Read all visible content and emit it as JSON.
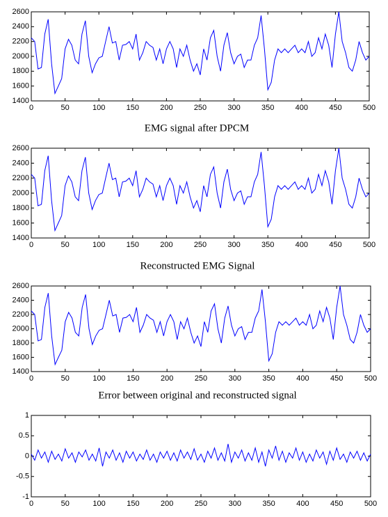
{
  "chart_data": [
    {
      "type": "line",
      "color": "#0000ff",
      "x": [
        0,
        5,
        10,
        15,
        20,
        25,
        30,
        35,
        40,
        45,
        50,
        55,
        60,
        65,
        70,
        75,
        80,
        85,
        90,
        95,
        100,
        105,
        110,
        115,
        120,
        125,
        130,
        135,
        140,
        145,
        150,
        155,
        160,
        165,
        170,
        175,
        180,
        185,
        190,
        195,
        200,
        205,
        210,
        215,
        220,
        225,
        230,
        235,
        240,
        245,
        250,
        255,
        260,
        265,
        270,
        275,
        280,
        285,
        290,
        295,
        300,
        305,
        310,
        315,
        320,
        325,
        330,
        335,
        340,
        345,
        350,
        355,
        360,
        365,
        370,
        375,
        380,
        385,
        390,
        395,
        400,
        405,
        410,
        415,
        420,
        425,
        430,
        435,
        440,
        445,
        450,
        455,
        460,
        465,
        470,
        475,
        480,
        485,
        490,
        495,
        500
      ],
      "values": [
        2250,
        2200,
        1830,
        1850,
        2300,
        2500,
        1900,
        1500,
        1600,
        1700,
        2100,
        2230,
        2150,
        1950,
        1900,
        2300,
        2480,
        2000,
        1780,
        1900,
        1980,
        2000,
        2200,
        2400,
        2180,
        2200,
        1950,
        2150,
        2160,
        2200,
        2100,
        2300,
        1950,
        2050,
        2200,
        2150,
        2120,
        1950,
        2100,
        1900,
        2100,
        2200,
        2100,
        1850,
        2100,
        2000,
        2150,
        1950,
        1800,
        1900,
        1750,
        2100,
        1950,
        2250,
        2350,
        2000,
        1800,
        2150,
        2320,
        2050,
        1900,
        2000,
        2030,
        1850,
        1950,
        1950,
        2150,
        2250,
        2550,
        2100,
        1550,
        1650,
        1950,
        2100,
        2050,
        2100,
        2050,
        2100,
        2150,
        2050,
        2100,
        2050,
        2200,
        2000,
        2050,
        2250,
        2100,
        2300,
        2150,
        1850,
        2300,
        2600,
        2200,
        2050,
        1850,
        1800,
        1950,
        2200,
        2050,
        1950,
        2000
      ],
      "xlim": [
        0,
        500
      ],
      "ylim": [
        1400,
        2600
      ],
      "xticks": [
        0,
        50,
        100,
        150,
        200,
        250,
        300,
        350,
        400,
        450,
        500
      ],
      "yticks": [
        1400,
        1600,
        1800,
        2000,
        2200,
        2400,
        2600
      ]
    },
    {
      "type": "line",
      "title": "EMG signal after DPCM",
      "color": "#0000ff",
      "x": [
        0,
        5,
        10,
        15,
        20,
        25,
        30,
        35,
        40,
        45,
        50,
        55,
        60,
        65,
        70,
        75,
        80,
        85,
        90,
        95,
        100,
        105,
        110,
        115,
        120,
        125,
        130,
        135,
        140,
        145,
        150,
        155,
        160,
        165,
        170,
        175,
        180,
        185,
        190,
        195,
        200,
        205,
        210,
        215,
        220,
        225,
        230,
        235,
        240,
        245,
        250,
        255,
        260,
        265,
        270,
        275,
        280,
        285,
        290,
        295,
        300,
        305,
        310,
        315,
        320,
        325,
        330,
        335,
        340,
        345,
        350,
        355,
        360,
        365,
        370,
        375,
        380,
        385,
        390,
        395,
        400,
        405,
        410,
        415,
        420,
        425,
        430,
        435,
        440,
        445,
        450,
        455,
        460,
        465,
        470,
        475,
        480,
        485,
        490,
        495,
        500
      ],
      "values": [
        2250,
        2200,
        1830,
        1850,
        2300,
        2500,
        1900,
        1500,
        1600,
        1700,
        2100,
        2230,
        2150,
        1950,
        1900,
        2300,
        2480,
        2000,
        1780,
        1900,
        1980,
        2000,
        2200,
        2400,
        2180,
        2200,
        1950,
        2150,
        2160,
        2200,
        2100,
        2300,
        1950,
        2050,
        2200,
        2150,
        2120,
        1950,
        2100,
        1900,
        2100,
        2200,
        2100,
        1850,
        2100,
        2000,
        2150,
        1950,
        1800,
        1900,
        1750,
        2100,
        1950,
        2250,
        2350,
        2000,
        1800,
        2150,
        2320,
        2050,
        1900,
        2000,
        2030,
        1850,
        1950,
        1950,
        2150,
        2250,
        2550,
        2100,
        1550,
        1650,
        1950,
        2100,
        2050,
        2100,
        2050,
        2100,
        2150,
        2050,
        2100,
        2050,
        2200,
        2000,
        2050,
        2250,
        2100,
        2300,
        2150,
        1850,
        2300,
        2600,
        2200,
        2050,
        1850,
        1800,
        1950,
        2200,
        2050,
        1950,
        2000
      ],
      "xlim": [
        0,
        500
      ],
      "ylim": [
        1400,
        2600
      ],
      "xticks": [
        0,
        50,
        100,
        150,
        200,
        250,
        300,
        350,
        400,
        450,
        500
      ],
      "yticks": [
        1400,
        1600,
        1800,
        2000,
        2200,
        2400,
        2600
      ]
    },
    {
      "type": "line",
      "title": "Reconstructed EMG Signal",
      "color": "#0000ff",
      "x": [
        0,
        5,
        10,
        15,
        20,
        25,
        30,
        35,
        40,
        45,
        50,
        55,
        60,
        65,
        70,
        75,
        80,
        85,
        90,
        95,
        100,
        105,
        110,
        115,
        120,
        125,
        130,
        135,
        140,
        145,
        150,
        155,
        160,
        165,
        170,
        175,
        180,
        185,
        190,
        195,
        200,
        205,
        210,
        215,
        220,
        225,
        230,
        235,
        240,
        245,
        250,
        255,
        260,
        265,
        270,
        275,
        280,
        285,
        290,
        295,
        300,
        305,
        310,
        315,
        320,
        325,
        330,
        335,
        340,
        345,
        350,
        355,
        360,
        365,
        370,
        375,
        380,
        385,
        390,
        395,
        400,
        405,
        410,
        415,
        420,
        425,
        430,
        435,
        440,
        445,
        450,
        455,
        460,
        465,
        470,
        475,
        480,
        485,
        490,
        495,
        500
      ],
      "values": [
        2250,
        2200,
        1830,
        1850,
        2300,
        2500,
        1900,
        1500,
        1600,
        1700,
        2100,
        2230,
        2150,
        1950,
        1900,
        2300,
        2480,
        2000,
        1780,
        1900,
        1980,
        2000,
        2200,
        2400,
        2180,
        2200,
        1950,
        2150,
        2160,
        2200,
        2100,
        2300,
        1950,
        2050,
        2200,
        2150,
        2120,
        1950,
        2100,
        1900,
        2100,
        2200,
        2100,
        1850,
        2100,
        2000,
        2150,
        1950,
        1800,
        1900,
        1750,
        2100,
        1950,
        2250,
        2350,
        2000,
        1800,
        2150,
        2320,
        2050,
        1900,
        2000,
        2030,
        1850,
        1950,
        1950,
        2150,
        2250,
        2550,
        2100,
        1550,
        1650,
        1950,
        2100,
        2050,
        2100,
        2050,
        2100,
        2150,
        2050,
        2100,
        2050,
        2200,
        2000,
        2050,
        2250,
        2100,
        2300,
        2150,
        1850,
        2300,
        2600,
        2200,
        2050,
        1850,
        1800,
        1950,
        2200,
        2050,
        1950,
        2000
      ],
      "xlim": [
        0,
        500
      ],
      "ylim": [
        1400,
        2600
      ],
      "xticks": [
        0,
        50,
        100,
        150,
        200,
        250,
        300,
        350,
        400,
        450,
        500
      ],
      "yticks": [
        1400,
        1600,
        1800,
        2000,
        2200,
        2400,
        2600
      ]
    },
    {
      "type": "line",
      "title": "Error between original and reconstructed signal",
      "color": "#0000ff",
      "x": [
        0,
        5,
        10,
        15,
        20,
        25,
        30,
        35,
        40,
        45,
        50,
        55,
        60,
        65,
        70,
        75,
        80,
        85,
        90,
        95,
        100,
        105,
        110,
        115,
        120,
        125,
        130,
        135,
        140,
        145,
        150,
        155,
        160,
        165,
        170,
        175,
        180,
        185,
        190,
        195,
        200,
        205,
        210,
        215,
        220,
        225,
        230,
        235,
        240,
        245,
        250,
        255,
        260,
        265,
        270,
        275,
        280,
        285,
        290,
        295,
        300,
        305,
        310,
        315,
        320,
        325,
        330,
        335,
        340,
        345,
        350,
        355,
        360,
        365,
        370,
        375,
        380,
        385,
        390,
        395,
        400,
        405,
        410,
        415,
        420,
        425,
        430,
        435,
        440,
        445,
        450,
        455,
        460,
        465,
        470,
        475,
        480,
        485,
        490,
        495,
        500
      ],
      "values": [
        0.05,
        -0.1,
        0.15,
        -0.05,
        0.1,
        -0.15,
        0.12,
        -0.08,
        0.05,
        -0.12,
        0.18,
        -0.05,
        0.08,
        -0.15,
        0.1,
        -0.02,
        0.15,
        -0.1,
        0.05,
        -0.12,
        0.2,
        -0.25,
        0.1,
        -0.05,
        0.15,
        -0.1,
        0.08,
        -0.15,
        0.12,
        -0.05,
        0.1,
        -0.12,
        0.05,
        -0.08,
        0.15,
        -0.1,
        0.05,
        -0.15,
        0.1,
        -0.05,
        0.12,
        -0.1,
        0.08,
        -0.12,
        0.15,
        -0.05,
        0.1,
        -0.08,
        0.18,
        -0.1,
        0.05,
        -0.15,
        0.12,
        -0.05,
        0.2,
        -0.1,
        0.08,
        -0.12,
        0.3,
        -0.15,
        0.1,
        -0.05,
        0.15,
        -0.12,
        0.08,
        -0.1,
        0.2,
        -0.15,
        0.1,
        -0.25,
        0.15,
        -0.05,
        0.25,
        -0.1,
        0.12,
        -0.15,
        0.08,
        -0.05,
        0.2,
        -0.1,
        0.1,
        -0.15,
        0.05,
        -0.12,
        0.15,
        -0.05,
        0.1,
        -0.2,
        0.12,
        -0.1,
        0.2,
        -0.08,
        0.05,
        -0.15,
        0.1,
        -0.05,
        0.12,
        -0.1,
        0.08,
        -0.12,
        0.05
      ],
      "xlim": [
        0,
        500
      ],
      "ylim": [
        -1,
        1
      ],
      "xticks": [
        0,
        50,
        100,
        150,
        200,
        250,
        300,
        350,
        400,
        450,
        500
      ],
      "yticks": [
        -1,
        -0.5,
        0,
        0.5,
        1
      ]
    }
  ]
}
